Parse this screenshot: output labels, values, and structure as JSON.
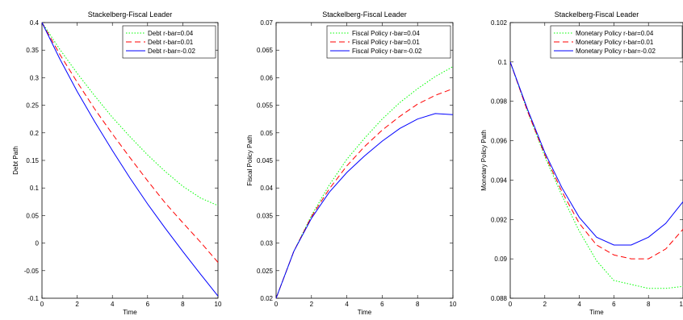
{
  "chart_data": [
    {
      "type": "line",
      "title": "Stackelberg-Fiscal Leader",
      "xlabel": "Time",
      "ylabel": "Debt Path",
      "xlim": [
        0,
        10
      ],
      "ylim": [
        -0.1,
        0.4
      ],
      "xticks": [
        "0",
        "2",
        "4",
        "6",
        "8",
        "10"
      ],
      "yticks": [
        "0.4",
        "0.35",
        "0.3",
        "0.25",
        "0.2",
        "0.15",
        "0.1",
        "0.05",
        "0",
        "-0.05",
        "-0.1"
      ],
      "x": [
        0,
        1,
        2,
        3,
        4,
        5,
        6,
        7,
        8,
        9,
        10
      ],
      "series": [
        {
          "name": "Debt r-bar=0.04",
          "color": "#00ff00",
          "dash": "dot",
          "values": [
            0.4,
            0.352,
            0.308,
            0.267,
            0.228,
            0.193,
            0.16,
            0.13,
            0.103,
            0.082,
            0.068
          ]
        },
        {
          "name": "Debt r-bar=0.01",
          "color": "#ff0000",
          "dash": "dash",
          "values": [
            0.4,
            0.343,
            0.292,
            0.243,
            0.198,
            0.155,
            0.113,
            0.073,
            0.037,
            0.002,
            -0.035
          ]
        },
        {
          "name": "Debt r-bar=-0.02",
          "color": "#0000ff",
          "dash": "solid",
          "values": [
            0.4,
            0.335,
            0.275,
            0.22,
            0.168,
            0.118,
            0.071,
            0.027,
            -0.015,
            -0.056,
            -0.096
          ]
        }
      ]
    },
    {
      "type": "line",
      "title": "Stackelberg-Fiscal Leader",
      "xlabel": "Time",
      "ylabel": "Fiscal Policy Path",
      "xlim": [
        0,
        10
      ],
      "ylim": [
        0.02,
        0.07
      ],
      "xticks": [
        "0",
        "2",
        "4",
        "6",
        "8",
        "10"
      ],
      "yticks": [
        "0.07",
        "0.065",
        "0.06",
        "0.055",
        "0.05",
        "0.045",
        "0.04",
        "0.035",
        "0.03",
        "0.025",
        "0.02"
      ],
      "x": [
        0,
        1,
        2,
        3,
        4,
        5,
        6,
        7,
        8,
        9,
        10
      ],
      "series": [
        {
          "name": "Fiscal Policy r-bar=0.04",
          "color": "#00ff00",
          "dash": "dot",
          "values": [
            0.02,
            0.0285,
            0.035,
            0.0405,
            0.0452,
            0.049,
            0.0525,
            0.0555,
            0.058,
            0.0602,
            0.062
          ]
        },
        {
          "name": "Fiscal Policy r-bar=0.01",
          "color": "#ff0000",
          "dash": "dash",
          "values": [
            0.02,
            0.0285,
            0.0348,
            0.0398,
            0.044,
            0.0475,
            0.0505,
            0.053,
            0.0552,
            0.0568,
            0.058
          ]
        },
        {
          "name": "Fiscal Policy r-bar=-0.02",
          "color": "#0000ff",
          "dash": "solid",
          "values": [
            0.02,
            0.0285,
            0.0345,
            0.0392,
            0.0428,
            0.0458,
            0.0485,
            0.0508,
            0.0525,
            0.0535,
            0.0533
          ]
        }
      ]
    },
    {
      "type": "line",
      "title": "Stackelberg-Fiscal Leader",
      "xlabel": "Time",
      "ylabel": "Monetary Policy Path",
      "xlim": [
        0,
        10
      ],
      "ylim": [
        0.088,
        0.102
      ],
      "xticks": [
        "0",
        "2",
        "4",
        "6",
        "8",
        "10"
      ],
      "yticks": [
        "0.102",
        "0.1",
        "0.098",
        "0.096",
        "0.094",
        "0.092",
        "0.09",
        "0.088"
      ],
      "x": [
        0,
        1,
        2,
        3,
        4,
        5,
        6,
        7,
        8,
        9,
        10
      ],
      "series": [
        {
          "name": "Monetary Policy r-bar=0.04",
          "color": "#00ff00",
          "dash": "dot",
          "values": [
            0.1,
            0.0975,
            0.0952,
            0.0932,
            0.0914,
            0.0899,
            0.0889,
            0.0887,
            0.0885,
            0.0885,
            0.0886
          ]
        },
        {
          "name": "Monetary Policy r-bar=0.01",
          "color": "#ff0000",
          "dash": "dash",
          "values": [
            0.1,
            0.0975,
            0.0953,
            0.0934,
            0.0918,
            0.0907,
            0.0902,
            0.09,
            0.09,
            0.0905,
            0.0915
          ]
        },
        {
          "name": "Monetary Policy r-bar=-0.02",
          "color": "#0000ff",
          "dash": "solid",
          "values": [
            0.1,
            0.0976,
            0.0954,
            0.0936,
            0.0921,
            0.0911,
            0.0907,
            0.0907,
            0.0911,
            0.0918,
            0.0929
          ]
        }
      ]
    }
  ]
}
